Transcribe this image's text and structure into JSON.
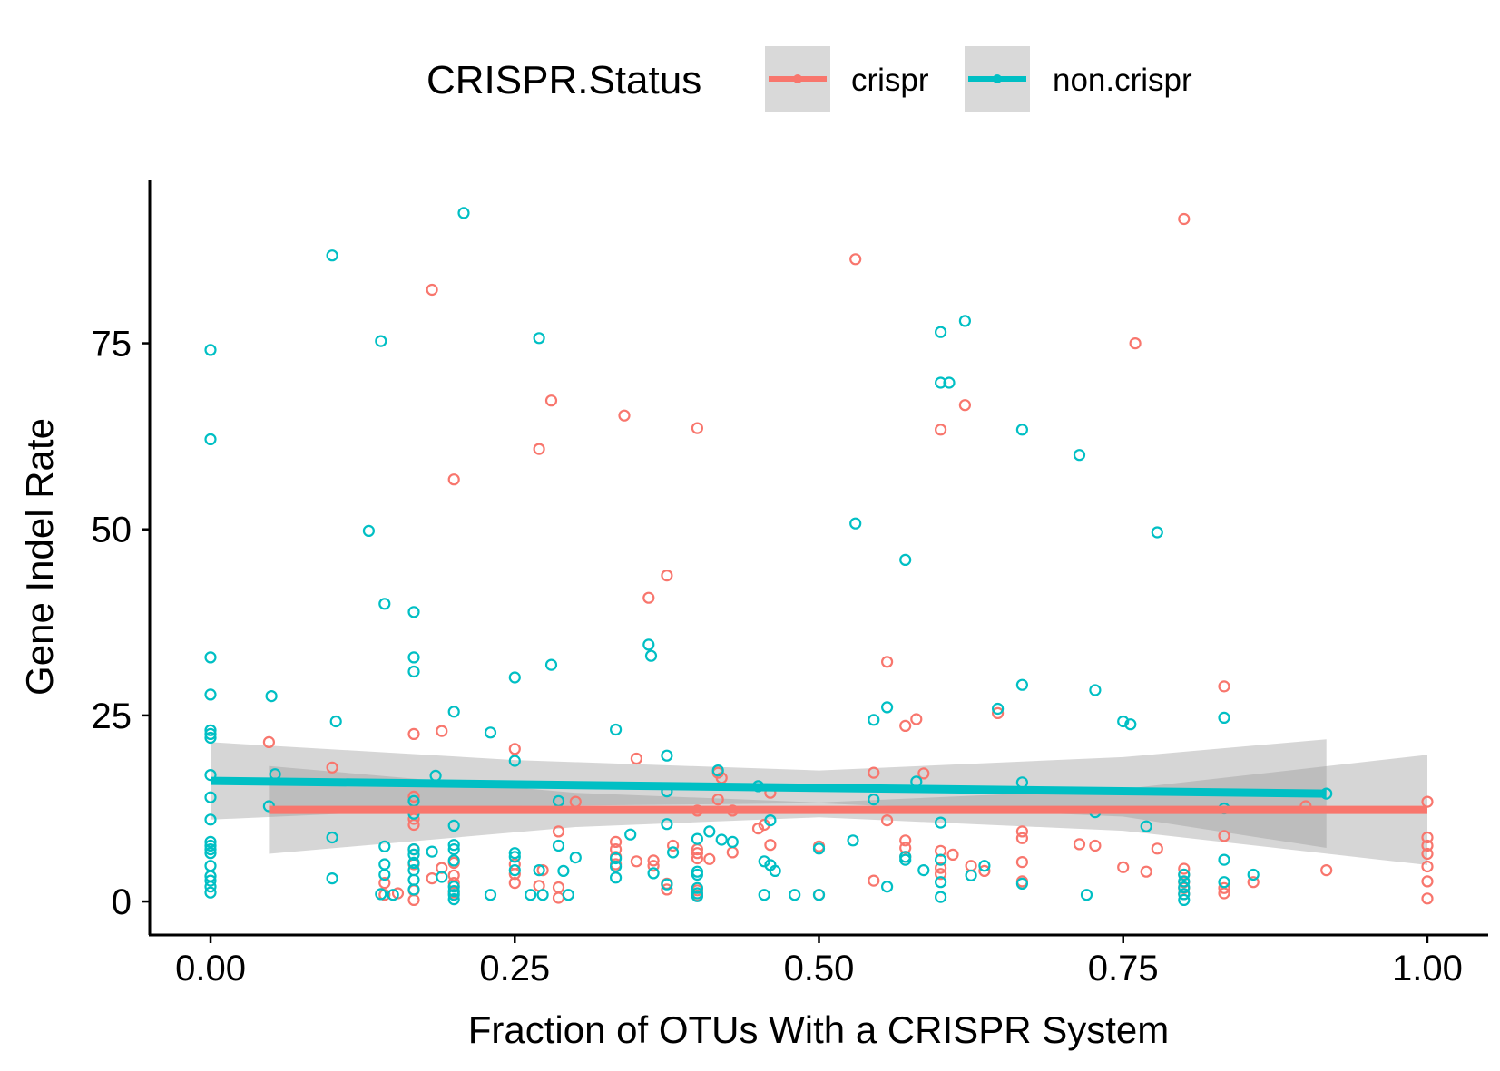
{
  "chart_data": {
    "type": "scatter",
    "title": "",
    "xlabel": "Fraction of OTUs With a CRISPR System",
    "ylabel": "Gene Indel Rate",
    "xlim": [
      -0.05,
      1.05
    ],
    "ylim": [
      -4.5,
      97
    ],
    "x_ticks": [
      0,
      0.25,
      0.5,
      0.75,
      1.0
    ],
    "x_tick_labels": [
      "0.00",
      "0.25",
      "0.50",
      "0.75",
      "1.00"
    ],
    "y_ticks": [
      0,
      25,
      50,
      75
    ],
    "y_tick_labels": [
      "0",
      "25",
      "50",
      "75"
    ],
    "grid": false,
    "legend": {
      "position": "top",
      "title": "CRISPR.Status",
      "entries": [
        "crispr",
        "non.crispr"
      ]
    },
    "colors": {
      "crispr": "#F8766D",
      "non.crispr": "#00BFC4",
      "ribbon": "#999999"
    },
    "series": [
      {
        "name": "crispr",
        "color": "#F8766D",
        "trend": {
          "x": [
            0.048,
            1.0
          ],
          "y": [
            12.3,
            12.3
          ]
        },
        "ribbon": {
          "x": [
            0.048,
            0.3,
            0.5,
            0.75,
            1.0
          ],
          "lower": [
            6.4,
            10.0,
            11.3,
            9.5,
            4.9
          ],
          "upper": [
            18.2,
            14.6,
            13.3,
            15.1,
            19.7
          ]
        },
        "points": [
          [
            0.048,
            21.4
          ],
          [
            0.1,
            18.0
          ],
          [
            0.143,
            2.5
          ],
          [
            0.143,
            0.9
          ],
          [
            0.154,
            1.1
          ],
          [
            0.167,
            22.5
          ],
          [
            0.167,
            14.1
          ],
          [
            0.167,
            11.1
          ],
          [
            0.167,
            10.3
          ],
          [
            0.167,
            7.0
          ],
          [
            0.167,
            5.0
          ],
          [
            0.167,
            1.5
          ],
          [
            0.167,
            0.2
          ],
          [
            0.182,
            82.2
          ],
          [
            0.182,
            3.1
          ],
          [
            0.19,
            22.9
          ],
          [
            0.19,
            4.5
          ],
          [
            0.2,
            56.7
          ],
          [
            0.2,
            5.2
          ],
          [
            0.2,
            3.5
          ],
          [
            0.2,
            2.5
          ],
          [
            0.2,
            1.2
          ],
          [
            0.25,
            20.5
          ],
          [
            0.25,
            5.0
          ],
          [
            0.25,
            3.7
          ],
          [
            0.25,
            2.5
          ],
          [
            0.27,
            60.8
          ],
          [
            0.27,
            2.1
          ],
          [
            0.273,
            4.2
          ],
          [
            0.28,
            67.3
          ],
          [
            0.286,
            9.4
          ],
          [
            0.286,
            1.9
          ],
          [
            0.286,
            0.5
          ],
          [
            0.3,
            13.4
          ],
          [
            0.333,
            8.0
          ],
          [
            0.333,
            7.0
          ],
          [
            0.333,
            6.0
          ],
          [
            0.333,
            5.0
          ],
          [
            0.34,
            65.3
          ],
          [
            0.35,
            5.4
          ],
          [
            0.35,
            19.2
          ],
          [
            0.36,
            40.8
          ],
          [
            0.364,
            5.5
          ],
          [
            0.364,
            4.8
          ],
          [
            0.375,
            43.8
          ],
          [
            0.375,
            2.4
          ],
          [
            0.375,
            1.6
          ],
          [
            0.38,
            7.5
          ],
          [
            0.4,
            63.6
          ],
          [
            0.4,
            12.2
          ],
          [
            0.4,
            7.0
          ],
          [
            0.4,
            6.5
          ],
          [
            0.4,
            5.8
          ],
          [
            0.4,
            1.5
          ],
          [
            0.4,
            0.8
          ],
          [
            0.41,
            5.7
          ],
          [
            0.417,
            13.7
          ],
          [
            0.417,
            17.3
          ],
          [
            0.42,
            16.6
          ],
          [
            0.429,
            12.2
          ],
          [
            0.429,
            6.6
          ],
          [
            0.45,
            9.8
          ],
          [
            0.455,
            10.3
          ],
          [
            0.46,
            14.6
          ],
          [
            0.46,
            7.6
          ],
          [
            0.5,
            7.4
          ],
          [
            0.5,
            0.9
          ],
          [
            0.53,
            86.3
          ],
          [
            0.545,
            17.3
          ],
          [
            0.545,
            2.8
          ],
          [
            0.556,
            32.2
          ],
          [
            0.556,
            10.9
          ],
          [
            0.571,
            23.6
          ],
          [
            0.571,
            8.2
          ],
          [
            0.571,
            7.2
          ],
          [
            0.571,
            6.0
          ],
          [
            0.58,
            24.5
          ],
          [
            0.586,
            17.2
          ],
          [
            0.6,
            63.4
          ],
          [
            0.6,
            6.8
          ],
          [
            0.6,
            4.5
          ],
          [
            0.6,
            3.7
          ],
          [
            0.61,
            6.3
          ],
          [
            0.62,
            66.7
          ],
          [
            0.625,
            4.8
          ],
          [
            0.636,
            4.1
          ],
          [
            0.647,
            25.3
          ],
          [
            0.667,
            9.4
          ],
          [
            0.667,
            8.5
          ],
          [
            0.667,
            5.3
          ],
          [
            0.667,
            2.7
          ],
          [
            0.714,
            7.7
          ],
          [
            0.727,
            7.5
          ],
          [
            0.75,
            4.6
          ],
          [
            0.76,
            75.0
          ],
          [
            0.769,
            4.0
          ],
          [
            0.778,
            7.1
          ],
          [
            0.8,
            91.7
          ],
          [
            0.8,
            4.4
          ],
          [
            0.8,
            3.6
          ],
          [
            0.8,
            2.6
          ],
          [
            0.8,
            1.8
          ],
          [
            0.8,
            1.0
          ],
          [
            0.833,
            28.9
          ],
          [
            0.833,
            8.8
          ],
          [
            0.833,
            1.8
          ],
          [
            0.833,
            1.1
          ],
          [
            0.857,
            2.6
          ],
          [
            0.9,
            12.8
          ],
          [
            0.917,
            4.2
          ],
          [
            1.0,
            13.4
          ],
          [
            1.0,
            8.6
          ],
          [
            1.0,
            7.5
          ],
          [
            1.0,
            6.4
          ],
          [
            1.0,
            4.7
          ],
          [
            1.0,
            2.7
          ],
          [
            1.0,
            0.4
          ]
        ]
      },
      {
        "name": "non.crispr",
        "color": "#00BFC4",
        "trend": {
          "x": [
            0.0,
            0.917
          ],
          "y": [
            16.2,
            14.5
          ]
        },
        "ribbon": {
          "x": [
            0.0,
            0.25,
            0.5,
            0.75,
            0.917
          ],
          "lower": [
            11.0,
            12.8,
            13.2,
            11.4,
            7.2
          ],
          "upper": [
            21.4,
            19.0,
            17.6,
            19.4,
            21.8
          ]
        },
        "points": [
          [
            0,
            74.1
          ],
          [
            0,
            62.1
          ],
          [
            0,
            32.8
          ],
          [
            0,
            27.8
          ],
          [
            0,
            23.0
          ],
          [
            0,
            22.5
          ],
          [
            0,
            22.0
          ],
          [
            0,
            17.0
          ],
          [
            0,
            14.0
          ],
          [
            0,
            11.0
          ],
          [
            0,
            8.0
          ],
          [
            0,
            7.5
          ],
          [
            0,
            7.0
          ],
          [
            0,
            6.5
          ],
          [
            0,
            4.8
          ],
          [
            0,
            3.4
          ],
          [
            0,
            2.8
          ],
          [
            0,
            2.0
          ],
          [
            0,
            1.2
          ],
          [
            0.048,
            12.8
          ],
          [
            0.05,
            27.6
          ],
          [
            0.053,
            17.1
          ],
          [
            0.1,
            86.8
          ],
          [
            0.1,
            8.6
          ],
          [
            0.1,
            3.1
          ],
          [
            0.103,
            24.2
          ],
          [
            0.13,
            49.8
          ],
          [
            0.14,
            75.3
          ],
          [
            0.14,
            1.0
          ],
          [
            0.143,
            40.0
          ],
          [
            0.143,
            7.4
          ],
          [
            0.143,
            5.0
          ],
          [
            0.143,
            3.6
          ],
          [
            0.15,
            0.9
          ],
          [
            0.167,
            38.9
          ],
          [
            0.167,
            32.8
          ],
          [
            0.167,
            30.9
          ],
          [
            0.167,
            13.5
          ],
          [
            0.167,
            11.8
          ],
          [
            0.167,
            7.0
          ],
          [
            0.167,
            6.3
          ],
          [
            0.167,
            5.2
          ],
          [
            0.167,
            4.2
          ],
          [
            0.167,
            2.9
          ],
          [
            0.167,
            1.6
          ],
          [
            0.182,
            6.7
          ],
          [
            0.185,
            16.9
          ],
          [
            0.19,
            3.3
          ],
          [
            0.2,
            25.5
          ],
          [
            0.2,
            10.2
          ],
          [
            0.2,
            7.6
          ],
          [
            0.2,
            7.0
          ],
          [
            0.2,
            5.5
          ],
          [
            0.2,
            2.0
          ],
          [
            0.2,
            1.4
          ],
          [
            0.2,
            0.9
          ],
          [
            0.2,
            0.3
          ],
          [
            0.208,
            92.5
          ],
          [
            0.23,
            22.7
          ],
          [
            0.23,
            0.9
          ],
          [
            0.25,
            30.1
          ],
          [
            0.25,
            18.9
          ],
          [
            0.25,
            6.5
          ],
          [
            0.25,
            6.0
          ],
          [
            0.25,
            4.2
          ],
          [
            0.263,
            0.9
          ],
          [
            0.27,
            75.7
          ],
          [
            0.27,
            4.2
          ],
          [
            0.273,
            0.9
          ],
          [
            0.28,
            31.8
          ],
          [
            0.286,
            13.5
          ],
          [
            0.286,
            7.5
          ],
          [
            0.29,
            4.1
          ],
          [
            0.294,
            0.9
          ],
          [
            0.3,
            5.9
          ],
          [
            0.333,
            23.1
          ],
          [
            0.333,
            5.8
          ],
          [
            0.333,
            4.7
          ],
          [
            0.333,
            3.2
          ],
          [
            0.345,
            9.0
          ],
          [
            0.36,
            34.5
          ],
          [
            0.362,
            33.0
          ],
          [
            0.364,
            3.8
          ],
          [
            0.375,
            19.6
          ],
          [
            0.375,
            14.8
          ],
          [
            0.375,
            10.4
          ],
          [
            0.375,
            2.3
          ],
          [
            0.38,
            6.6
          ],
          [
            0.4,
            8.4
          ],
          [
            0.4,
            4.0
          ],
          [
            0.4,
            3.6
          ],
          [
            0.4,
            1.8
          ],
          [
            0.4,
            1.1
          ],
          [
            0.4,
            0.7
          ],
          [
            0.41,
            9.4
          ],
          [
            0.417,
            17.6
          ],
          [
            0.42,
            8.3
          ],
          [
            0.429,
            8.0
          ],
          [
            0.45,
            15.5
          ],
          [
            0.455,
            5.4
          ],
          [
            0.455,
            0.9
          ],
          [
            0.46,
            4.9
          ],
          [
            0.46,
            10.9
          ],
          [
            0.464,
            4.1
          ],
          [
            0.48,
            0.9
          ],
          [
            0.5,
            7.1
          ],
          [
            0.5,
            0.9
          ],
          [
            0.528,
            8.2
          ],
          [
            0.53,
            50.8
          ],
          [
            0.545,
            24.4
          ],
          [
            0.545,
            13.7
          ],
          [
            0.556,
            26.1
          ],
          [
            0.556,
            2.0
          ],
          [
            0.571,
            45.9
          ],
          [
            0.571,
            6.0
          ],
          [
            0.571,
            5.6
          ],
          [
            0.58,
            16.1
          ],
          [
            0.586,
            4.2
          ],
          [
            0.6,
            76.5
          ],
          [
            0.6,
            69.7
          ],
          [
            0.6,
            10.6
          ],
          [
            0.6,
            5.6
          ],
          [
            0.6,
            2.6
          ],
          [
            0.6,
            0.6
          ],
          [
            0.607,
            69.7
          ],
          [
            0.62,
            78.0
          ],
          [
            0.625,
            3.5
          ],
          [
            0.636,
            4.8
          ],
          [
            0.647,
            25.9
          ],
          [
            0.667,
            63.4
          ],
          [
            0.667,
            29.1
          ],
          [
            0.667,
            16.0
          ],
          [
            0.667,
            2.4
          ],
          [
            0.714,
            60.0
          ],
          [
            0.72,
            0.9
          ],
          [
            0.727,
            28.4
          ],
          [
            0.727,
            12.0
          ],
          [
            0.75,
            24.2
          ],
          [
            0.756,
            23.8
          ],
          [
            0.769,
            10.1
          ],
          [
            0.778,
            49.6
          ],
          [
            0.8,
            3.6
          ],
          [
            0.8,
            2.7
          ],
          [
            0.8,
            1.9
          ],
          [
            0.8,
            1.0
          ],
          [
            0.8,
            0.2
          ],
          [
            0.833,
            24.7
          ],
          [
            0.833,
            12.5
          ],
          [
            0.833,
            5.6
          ],
          [
            0.833,
            2.6
          ],
          [
            0.857,
            3.6
          ],
          [
            0.917,
            14.5
          ]
        ]
      }
    ]
  }
}
